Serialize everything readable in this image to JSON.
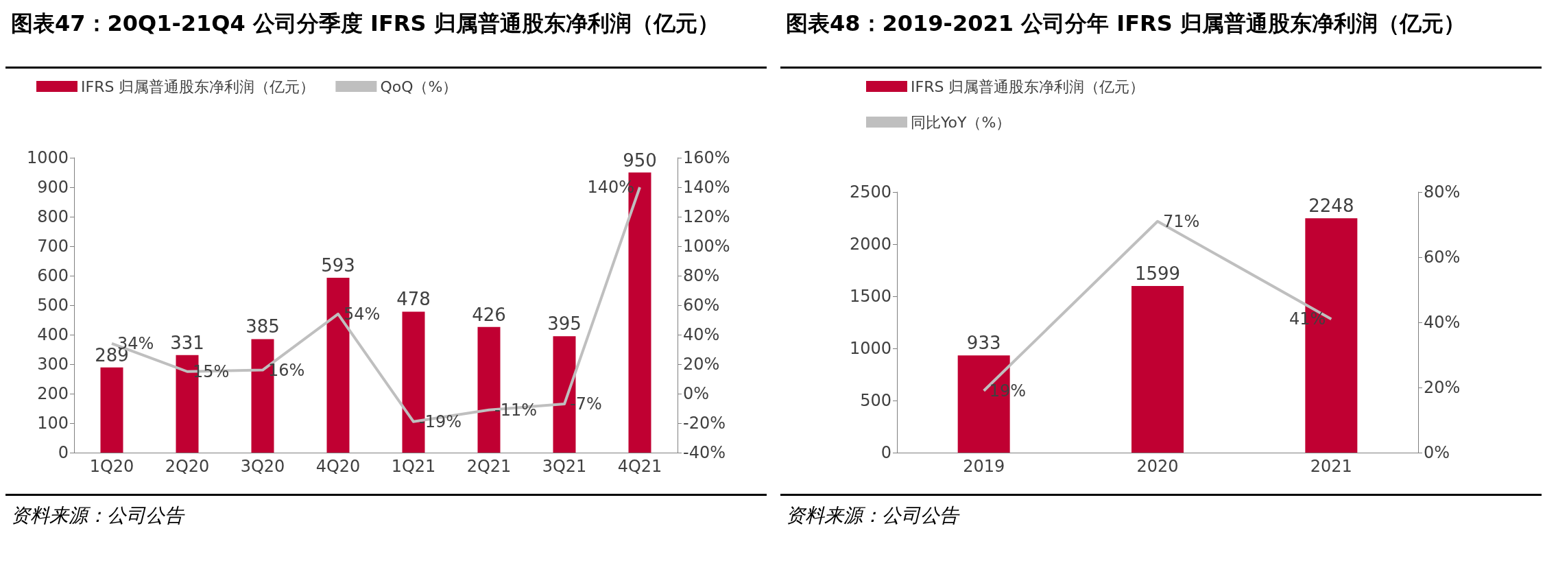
{
  "chart_data": [
    {
      "type": "bar",
      "title": "图表47：20Q1-21Q4 公司分季度 IFRS 归属普通股东净利润（亿元）",
      "categories": [
        "1Q20",
        "2Q20",
        "3Q20",
        "4Q20",
        "1Q21",
        "2Q21",
        "3Q21",
        "4Q21"
      ],
      "series": [
        {
          "name": "IFRS 归属普通股东净利润（亿元）",
          "color": "#c00032",
          "values": [
            289,
            331,
            385,
            593,
            478,
            426,
            395,
            950
          ],
          "value_labels": [
            "289",
            "331",
            "385",
            "593",
            "478",
            "426",
            "395",
            "950"
          ]
        },
        {
          "name": "QoQ（%）",
          "type": "line",
          "axis": "y2",
          "color": "#bfbfbf",
          "values": [
            34,
            15,
            16,
            54,
            -19,
            -11,
            -7,
            140
          ],
          "value_labels": [
            "34%",
            "15%",
            "16%",
            "54%",
            "-19%",
            "-11%",
            "-7%",
            "140%"
          ]
        }
      ],
      "ylim": [
        0,
        1000
      ],
      "yticks": [
        0,
        100,
        200,
        300,
        400,
        500,
        600,
        700,
        800,
        900,
        1000
      ],
      "y2lim": [
        -40,
        160
      ],
      "y2ticks": [
        {
          "value": -40,
          "label": "-40%"
        },
        {
          "value": -20,
          "label": "-20%"
        },
        {
          "value": 0,
          "label": "0%"
        },
        {
          "value": 20,
          "label": "20%"
        },
        {
          "value": 40,
          "label": "40%"
        },
        {
          "value": 60,
          "label": "60%"
        },
        {
          "value": 80,
          "label": "80%"
        },
        {
          "value": 100,
          "label": "100%"
        },
        {
          "value": 120,
          "label": "120%"
        },
        {
          "value": 140,
          "label": "140%"
        },
        {
          "value": 160,
          "label": "160%"
        }
      ],
      "grid": false,
      "legend": "top",
      "marker": "none",
      "annotations": [
        "资料来源：公司公告"
      ]
    },
    {
      "type": "bar",
      "title": "图表48：2019-2021 公司分年 IFRS 归属普通股东净利润（亿元）",
      "categories": [
        "2019",
        "2020",
        "2021"
      ],
      "series": [
        {
          "name": "IFRS 归属普通股东净利润（亿元）",
          "color": "#c00032",
          "values": [
            933,
            1599,
            2248
          ],
          "value_labels": [
            "933",
            "1599",
            "2248"
          ]
        },
        {
          "name": "同比YoY（%）",
          "type": "line",
          "axis": "y2",
          "color": "#bfbfbf",
          "values": [
            19,
            71,
            41
          ],
          "value_labels": [
            "19%",
            "71%",
            "41%"
          ]
        }
      ],
      "ylim": [
        0,
        2500
      ],
      "yticks": [
        0,
        500,
        1000,
        1500,
        2000,
        2500
      ],
      "y2lim": [
        0,
        80
      ],
      "y2ticks": [
        {
          "value": 0,
          "label": "0%"
        },
        {
          "value": 20,
          "label": "20%"
        },
        {
          "value": 40,
          "label": "40%"
        },
        {
          "value": 60,
          "label": "60%"
        },
        {
          "value": 80,
          "label": "80%"
        }
      ],
      "grid": false,
      "legend": "top",
      "marker": "none",
      "annotations": [
        "资料来源：公司公告"
      ]
    }
  ]
}
